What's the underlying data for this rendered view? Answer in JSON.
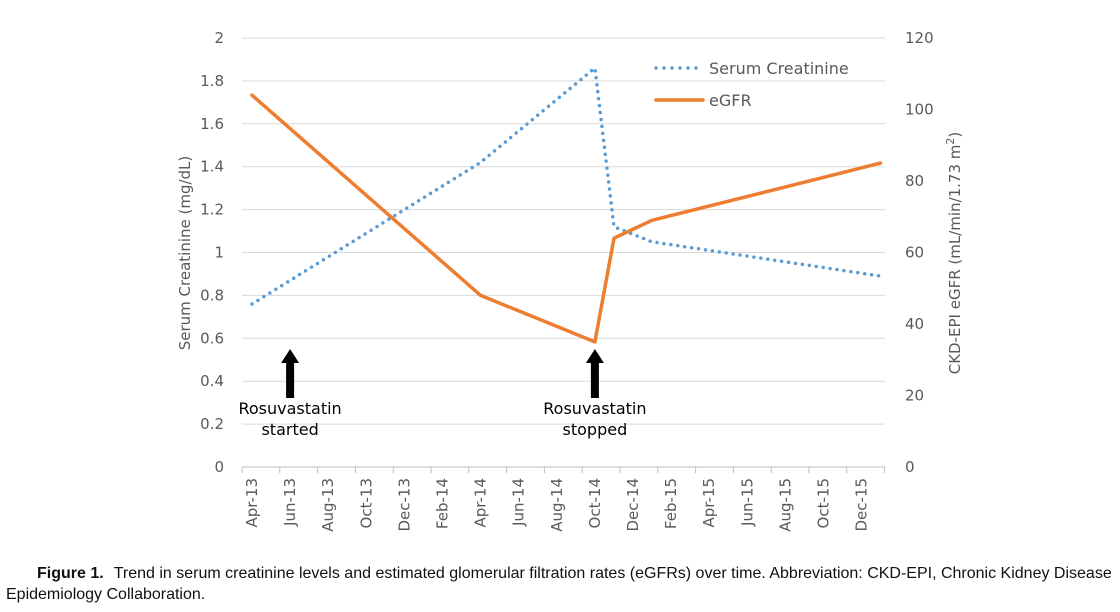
{
  "chart_data": {
    "type": "line",
    "x_axis": {
      "type": "date",
      "tick_labels": [
        "Apr-13",
        "Jun-13",
        "Aug-13",
        "Oct-13",
        "Dec-13",
        "Feb-14",
        "Apr-14",
        "Jun-14",
        "Aug-14",
        "Oct-14",
        "Dec-14",
        "Feb-15",
        "Apr-15",
        "Jun-15",
        "Aug-15",
        "Oct-15",
        "Dec-15"
      ],
      "range": [
        "2013-04",
        "2016-01"
      ]
    },
    "y_axis_left": {
      "label": "Serum Creatinine (mg/dL)",
      "range": [
        0,
        2
      ],
      "ticks": [
        "0",
        "0.2",
        "0.4",
        "0.6",
        "0.8",
        "1",
        "1.2",
        "1.4",
        "1.6",
        "1.8",
        "2"
      ]
    },
    "y_axis_right": {
      "label_main": "CKD-EPI eGFR (mL/min/1.73 m",
      "label_sup": "2",
      "label_end": ")",
      "range": [
        0,
        120
      ],
      "ticks": [
        "0",
        "20",
        "40",
        "60",
        "80",
        "100",
        "120"
      ]
    },
    "grid": "horizontal",
    "legend_placement": "top-right",
    "series": [
      {
        "name": "Serum Creatinine",
        "axis": "left",
        "style": "dotted",
        "color": "#5B9BD5",
        "points": [
          [
            "2013-04",
            0.76
          ],
          [
            "2014-04",
            1.42
          ],
          [
            "2014-10",
            1.86
          ],
          [
            "2014-11",
            1.12
          ],
          [
            "2015-01",
            1.05
          ],
          [
            "2016-01",
            0.89
          ]
        ]
      },
      {
        "name": "eGFR",
        "axis": "right",
        "style": "solid",
        "color": "#ED7D31",
        "points": [
          [
            "2013-04",
            104
          ],
          [
            "2014-04",
            48
          ],
          [
            "2014-10",
            35
          ],
          [
            "2014-11",
            64
          ],
          [
            "2015-01",
            69
          ],
          [
            "2016-01",
            85
          ]
        ]
      }
    ],
    "annotations": [
      {
        "date": "2013-06",
        "lines": [
          "Rosuvastatin",
          "started"
        ]
      },
      {
        "date": "2014-10",
        "lines": [
          "Rosuvastatin",
          "stopped"
        ]
      }
    ]
  },
  "caption": {
    "label": "Figure 1.",
    "text": "Trend in serum creatinine levels and estimated glomerular filtration rates (eGFRs) over time. Abbreviation: CKD-EPI, Chronic Kidney Disease Epidemiology Collaboration."
  }
}
